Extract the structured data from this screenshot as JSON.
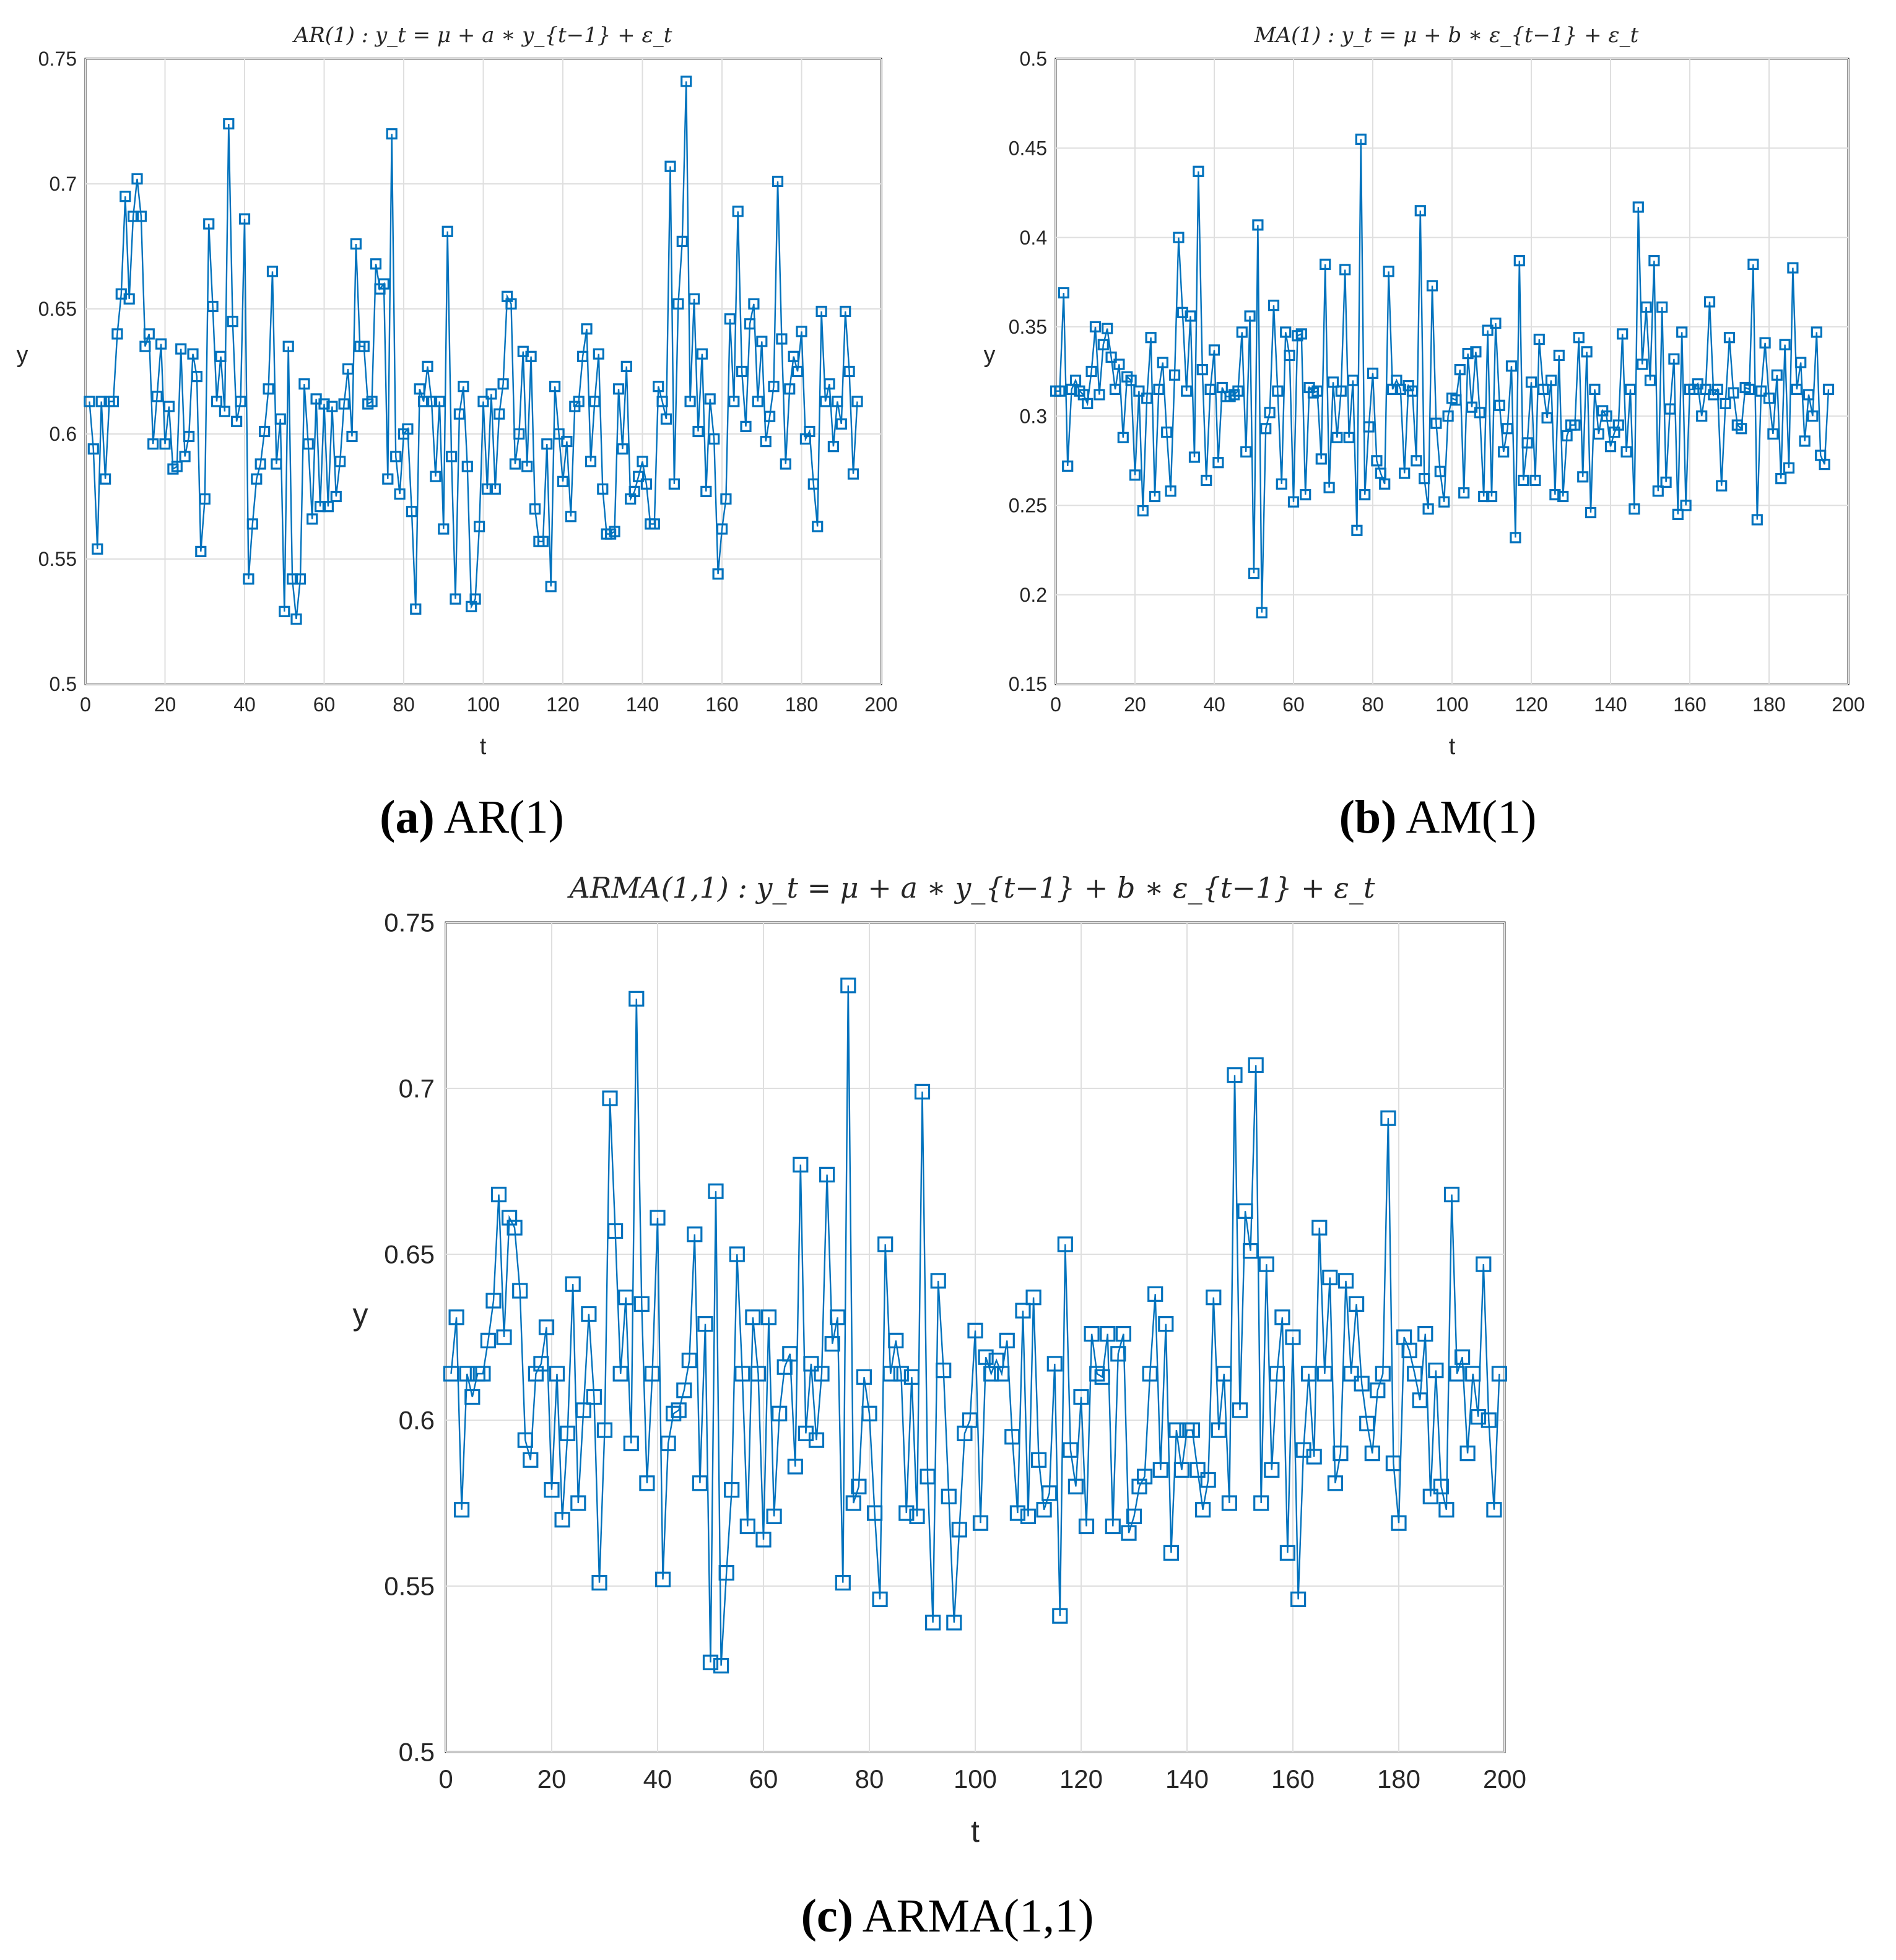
{
  "colors": {
    "series": "#0072bd",
    "grid": "#dfdfdf",
    "axis": "#262626",
    "background": "#ffffff"
  },
  "captions": [
    {
      "tag": "(a)",
      "text": "AR(1)"
    },
    {
      "tag": "(b)",
      "text": "AM(1)"
    },
    {
      "tag": "(c)",
      "text": "ARMA(1,1)"
    }
  ],
  "chart_data": [
    {
      "type": "line",
      "marker": "square",
      "title": "AR(1) : y_t = μ + a ∗ y_{t−1} + ε_t",
      "xlabel": "t",
      "ylabel": "y",
      "xlim": [
        0,
        200
      ],
      "ylim": [
        0.5,
        0.75
      ],
      "xticks": [
        "0",
        "20",
        "40",
        "60",
        "80",
        "100",
        "120",
        "140",
        "160",
        "180",
        "200"
      ],
      "yticks": [
        "0.5",
        "0.55",
        "0.6",
        "0.65",
        "0.7",
        "0.75"
      ],
      "grid": true,
      "series": [
        {
          "name": "y",
          "x_start": 1,
          "x_step": 1,
          "values": [
            0.613,
            0.594,
            0.554,
            0.613,
            0.582,
            0.613,
            0.613,
            0.64,
            0.656,
            0.695,
            0.654,
            0.687,
            0.702,
            0.687,
            0.635,
            0.64,
            0.596,
            0.615,
            0.636,
            0.596,
            0.611,
            0.586,
            0.587,
            0.634,
            0.591,
            0.599,
            0.632,
            0.623,
            0.553,
            0.574,
            0.684,
            0.651,
            0.613,
            0.631,
            0.609,
            0.724,
            0.645,
            0.605,
            0.613,
            0.686,
            0.542,
            0.564,
            0.582,
            0.588,
            0.601,
            0.618,
            0.665,
            0.588,
            0.606,
            0.529,
            0.635,
            0.542,
            0.526,
            0.542,
            0.62,
            0.596,
            0.566,
            0.614,
            0.571,
            0.612,
            0.571,
            0.611,
            0.575,
            0.589,
            0.612,
            0.626,
            0.599,
            0.676,
            0.635,
            0.635,
            0.612,
            0.613,
            0.668,
            0.658,
            0.66,
            0.582,
            0.72,
            0.591,
            0.576,
            0.6,
            0.602,
            0.569,
            0.53,
            0.618,
            0.613,
            0.627,
            0.613,
            0.583,
            0.613,
            0.562,
            0.681,
            0.591,
            0.534,
            0.608,
            0.619,
            0.587,
            0.531,
            0.534,
            0.563,
            0.613,
            0.578,
            0.616,
            0.578,
            0.608,
            0.62,
            0.655,
            0.652,
            0.588,
            0.6,
            0.633,
            0.587,
            0.631,
            0.57,
            0.557,
            0.557,
            0.596,
            0.539,
            0.619,
            0.6,
            0.581,
            0.597,
            0.567,
            0.611,
            0.613,
            0.631,
            0.642,
            0.589,
            0.613,
            0.632,
            0.578,
            0.56,
            0.56,
            0.561,
            0.618,
            0.594,
            0.627,
            0.574,
            0.577,
            0.583,
            0.589,
            0.58,
            0.564,
            0.564,
            0.619,
            0.613,
            0.606,
            0.707,
            0.58,
            0.652,
            0.677,
            0.741,
            0.613,
            0.654,
            0.601,
            0.632,
            0.577,
            0.614,
            0.598,
            0.544,
            0.562,
            0.574,
            0.646,
            0.613,
            0.689,
            0.625,
            0.603,
            0.644,
            0.652,
            0.613,
            0.637,
            0.597,
            0.607,
            0.619,
            0.701,
            0.638,
            0.588,
            0.618,
            0.631,
            0.625,
            0.641,
            0.598,
            0.601,
            0.58,
            0.563,
            0.649,
            0.613,
            0.62,
            0.595,
            0.613,
            0.604,
            0.649,
            0.625,
            0.584,
            0.613
          ]
        }
      ]
    },
    {
      "type": "line",
      "marker": "square",
      "title": "MA(1) : y_t = μ + b ∗ ε_{t−1} + ε_t",
      "xlabel": "t",
      "ylabel": "y",
      "xlim": [
        0,
        200
      ],
      "ylim": [
        0.15,
        0.5
      ],
      "xticks": [
        "0",
        "20",
        "40",
        "60",
        "80",
        "100",
        "120",
        "140",
        "160",
        "180",
        "200"
      ],
      "yticks": [
        "0.15",
        "0.2",
        "0.25",
        "0.3",
        "0.35",
        "0.4",
        "0.45",
        "0.5"
      ],
      "grid": true,
      "series": [
        {
          "name": "y",
          "x_start": 0,
          "x_step": 1,
          "values": [
            0.314,
            0.314,
            0.369,
            0.272,
            0.315,
            0.32,
            0.314,
            0.312,
            0.307,
            0.325,
            0.35,
            0.312,
            0.34,
            0.349,
            0.333,
            0.315,
            0.329,
            0.288,
            0.322,
            0.32,
            0.267,
            0.314,
            0.247,
            0.31,
            0.344,
            0.255,
            0.315,
            0.33,
            0.291,
            0.258,
            0.323,
            0.4,
            0.358,
            0.314,
            0.356,
            0.277,
            0.437,
            0.326,
            0.264,
            0.315,
            0.337,
            0.274,
            0.316,
            0.311,
            0.311,
            0.312,
            0.314,
            0.347,
            0.28,
            0.356,
            0.212,
            0.407,
            0.19,
            0.293,
            0.302,
            0.362,
            0.314,
            0.262,
            0.347,
            0.334,
            0.252,
            0.345,
            0.346,
            0.256,
            0.316,
            0.313,
            0.314,
            0.276,
            0.385,
            0.26,
            0.319,
            0.288,
            0.314,
            0.382,
            0.288,
            0.32,
            0.236,
            0.455,
            0.256,
            0.294,
            0.324,
            0.275,
            0.268,
            0.262,
            0.381,
            0.315,
            0.32,
            0.315,
            0.268,
            0.317,
            0.314,
            0.275,
            0.415,
            0.265,
            0.248,
            0.373,
            0.296,
            0.269,
            0.252,
            0.3,
            0.31,
            0.309,
            0.326,
            0.257,
            0.335,
            0.305,
            0.336,
            0.302,
            0.255,
            0.348,
            0.255,
            0.352,
            0.306,
            0.28,
            0.293,
            0.328,
            0.232,
            0.387,
            0.264,
            0.285,
            0.319,
            0.264,
            0.343,
            0.315,
            0.299,
            0.32,
            0.256,
            0.334,
            0.255,
            0.289,
            0.295,
            0.295,
            0.344,
            0.266,
            0.336,
            0.246,
            0.315,
            0.29,
            0.303,
            0.3,
            0.283,
            0.291,
            0.295,
            0.346,
            0.28,
            0.315,
            0.248,
            0.417,
            0.329,
            0.361,
            0.32,
            0.387,
            0.258,
            0.361,
            0.263,
            0.304,
            0.332,
            0.245,
            0.347,
            0.25,
            0.315,
            0.315,
            0.318,
            0.3,
            0.315,
            0.364,
            0.312,
            0.315,
            0.261,
            0.307,
            0.344,
            0.313,
            0.295,
            0.293,
            0.316,
            0.315,
            0.385,
            0.242,
            0.314,
            0.341,
            0.31,
            0.29,
            0.323,
            0.265,
            0.34,
            0.271,
            0.383,
            0.315,
            0.33,
            0.286,
            0.312,
            0.3,
            0.347,
            0.278,
            0.273,
            0.315
          ]
        }
      ]
    },
    {
      "type": "line",
      "marker": "square",
      "title": "ARMA(1,1) : y_t = μ + a ∗ y_{t−1} + b ∗ ε_{t−1} + ε_t",
      "xlabel": "t",
      "ylabel": "y",
      "xlim": [
        0,
        200
      ],
      "ylim": [
        0.5,
        0.75
      ],
      "xticks": [
        "0",
        "20",
        "40",
        "60",
        "80",
        "100",
        "120",
        "140",
        "160",
        "180",
        "200"
      ],
      "yticks": [
        "0.5",
        "0.55",
        "0.6",
        "0.65",
        "0.7",
        "0.75"
      ],
      "grid": true,
      "series": [
        {
          "name": "y",
          "x_start": 1,
          "x_step": 1,
          "values": [
            0.614,
            0.631,
            0.573,
            0.614,
            0.607,
            0.614,
            0.614,
            0.624,
            0.636,
            0.668,
            0.625,
            0.661,
            0.658,
            0.639,
            0.594,
            0.588,
            0.614,
            0.617,
            0.628,
            0.579,
            0.614,
            0.57,
            0.596,
            0.641,
            0.575,
            0.603,
            0.632,
            0.607,
            0.551,
            0.597,
            0.697,
            0.657,
            0.614,
            0.637,
            0.593,
            0.727,
            0.635,
            0.581,
            0.614,
            0.661,
            0.552,
            0.593,
            0.602,
            0.603,
            0.609,
            0.618,
            0.656,
            0.581,
            0.629,
            0.527,
            0.669,
            0.526,
            0.554,
            0.579,
            0.65,
            0.614,
            0.568,
            0.631,
            0.614,
            0.564,
            0.631,
            0.571,
            0.602,
            0.616,
            0.62,
            0.586,
            0.677,
            0.596,
            0.617,
            0.594,
            0.614,
            0.674,
            0.623,
            0.631,
            0.551,
            0.731,
            0.575,
            0.58,
            0.613,
            0.602,
            0.572,
            0.546,
            0.653,
            0.614,
            0.624,
            0.614,
            0.572,
            0.613,
            0.571,
            0.699,
            0.583,
            0.539,
            0.642,
            0.615,
            0.577,
            0.539,
            0.567,
            0.596,
            0.6,
            0.627,
            0.569,
            0.619,
            0.614,
            0.618,
            0.614,
            0.624,
            0.595,
            0.572,
            0.633,
            0.571,
            0.637,
            0.588,
            0.573,
            0.578,
            0.617,
            0.541,
            0.653,
            0.591,
            0.58,
            0.607,
            0.568,
            0.626,
            0.614,
            0.613,
            0.626,
            0.568,
            0.62,
            0.626,
            0.566,
            0.571,
            0.58,
            0.583,
            0.614,
            0.638,
            0.585,
            0.629,
            0.56,
            0.597,
            0.585,
            0.597,
            0.597,
            0.585,
            0.573,
            0.582,
            0.637,
            0.597,
            0.614,
            0.575,
            0.704,
            0.603,
            0.663,
            0.651,
            0.707,
            0.575,
            0.647,
            0.585,
            0.614,
            0.631,
            0.56,
            0.625,
            0.546,
            0.591,
            0.614,
            0.589,
            0.658,
            0.614,
            0.643,
            0.581,
            0.59,
            0.642,
            0.614,
            0.635,
            0.611,
            0.599,
            0.59,
            0.609,
            0.614,
            0.691,
            0.587,
            0.569,
            0.625,
            0.621,
            0.614,
            0.606,
            0.626,
            0.577,
            0.615,
            0.58,
            0.573,
            0.668,
            0.614,
            0.619,
            0.59,
            0.614,
            0.601,
            0.647,
            0.6,
            0.573,
            0.614
          ]
        }
      ]
    }
  ]
}
